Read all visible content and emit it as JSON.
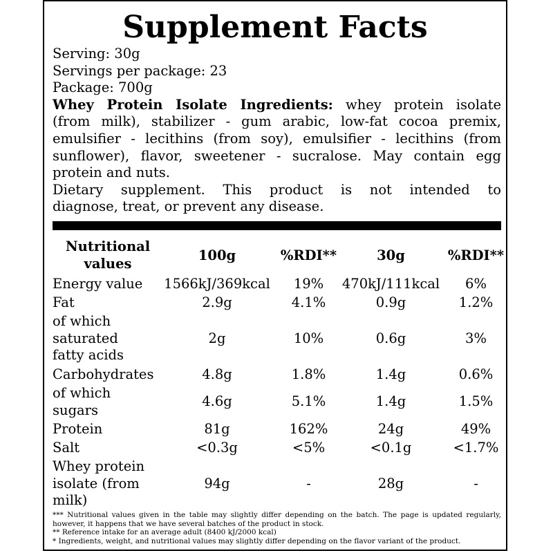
{
  "title": "Supplement Facts",
  "info": {
    "serving": "Serving: 30g",
    "servings_per_package": "Servings per package: 23",
    "package": "Package: 700g",
    "ingredients_label": "Whey Protein Isolate Ingredients:",
    "ingredients_lines": [
      " whey protein isolate",
      "(from milk), stabilizer - gum arabic, low-fat cocoa premix,",
      "emulsifier - lecithins (from soy), emulsifier - lecithins (from",
      "sunflower), flavor, sweetener - sucralose. May contain egg",
      "protein and nuts."
    ],
    "disclaimer_lines": [
      "Dietary supplement. This product is not intended to",
      "diagnose, treat, or prevent any disease."
    ]
  },
  "table": {
    "headers": [
      "Nutritional values",
      "100g",
      "%RDI**",
      "30g",
      "%RDI**"
    ],
    "rows": [
      [
        "Energy value",
        "1566kJ/369kcal",
        "19%",
        "470kJ/111kcal",
        "6%"
      ],
      [
        "Fat",
        "2.9g",
        "4.1%",
        "0.9g",
        "1.2%"
      ],
      [
        "of which saturated fatty acids",
        "2g",
        "10%",
        "0.6g",
        "3%"
      ],
      [
        "Carbohydrates",
        "4.8g",
        "1.8%",
        "1.4g",
        "0.6%"
      ],
      [
        "of which sugars",
        "4.6g",
        "5.1%",
        "1.4g",
        "1.5%"
      ],
      [
        "Protein",
        "81g",
        "162%",
        "24g",
        "49%"
      ],
      [
        "Salt",
        "<0.3g",
        "<5%",
        "<0.1g",
        "<1.7%"
      ],
      [
        "Whey protein isolate (from milk)",
        "94g",
        "-",
        "28g",
        "-"
      ]
    ]
  },
  "footnotes": [
    "*** Nutritional values given in the table may slightly differ depending on the batch. The page is updated regularly,",
    "however, it happens that we have several batches of the product in stock.",
    "** Reference intake for an average adult (8400 kJ/2000 kcal)",
    "* Ingredients, weight, and nutritional values may slightly differ depending on the flavor variant of the product."
  ]
}
